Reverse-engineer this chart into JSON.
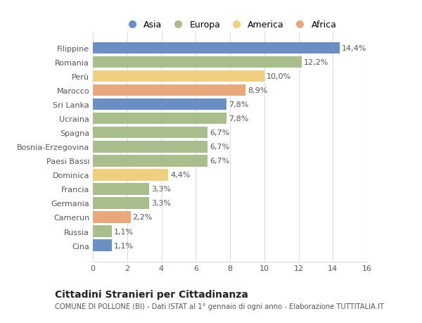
{
  "categories": [
    "Filippine",
    "Romania",
    "Perù",
    "Marocco",
    "Sri Lanka",
    "Ucraina",
    "Spagna",
    "Bosnia-Erzegovina",
    "Paesi Bassi",
    "Dominica",
    "Francia",
    "Germania",
    "Camerun",
    "Russia",
    "Cina"
  ],
  "values": [
    14.4,
    12.2,
    10.0,
    8.9,
    7.8,
    7.8,
    6.7,
    6.7,
    6.7,
    4.4,
    3.3,
    3.3,
    2.2,
    1.1,
    1.1
  ],
  "labels": [
    "14,4%",
    "12,2%",
    "10,0%",
    "8,9%",
    "7,8%",
    "7,8%",
    "6,7%",
    "6,7%",
    "6,7%",
    "4,4%",
    "3,3%",
    "3,3%",
    "2,2%",
    "1,1%",
    "1,1%"
  ],
  "colors": [
    "#6a8fc2",
    "#a8be8c",
    "#f0d080",
    "#e8a87c",
    "#6a8fc2",
    "#a8be8c",
    "#a8be8c",
    "#a8be8c",
    "#a8be8c",
    "#f0d080",
    "#a8be8c",
    "#a8be8c",
    "#e8a87c",
    "#a8be8c",
    "#6a8fc2"
  ],
  "legend_labels": [
    "Asia",
    "Europa",
    "America",
    "Africa"
  ],
  "legend_colors": [
    "#6a8fc2",
    "#a8be8c",
    "#f0d080",
    "#e8a87c"
  ],
  "title": "Cittadini Stranieri per Cittadinanza",
  "subtitle": "COMUNE DI POLLONE (BI) - Dati ISTAT al 1° gennaio di ogni anno - Elaborazione TUTTITALIA.IT",
  "xlim": [
    0,
    16
  ],
  "xticks": [
    0,
    2,
    4,
    6,
    8,
    10,
    12,
    14,
    16
  ],
  "bg_color": "#ffffff",
  "grid_color": "#dddddd",
  "bar_height": 0.82,
  "label_fontsize": 8.0,
  "tick_fontsize": 8.0,
  "title_fontsize": 10,
  "subtitle_fontsize": 7.2
}
